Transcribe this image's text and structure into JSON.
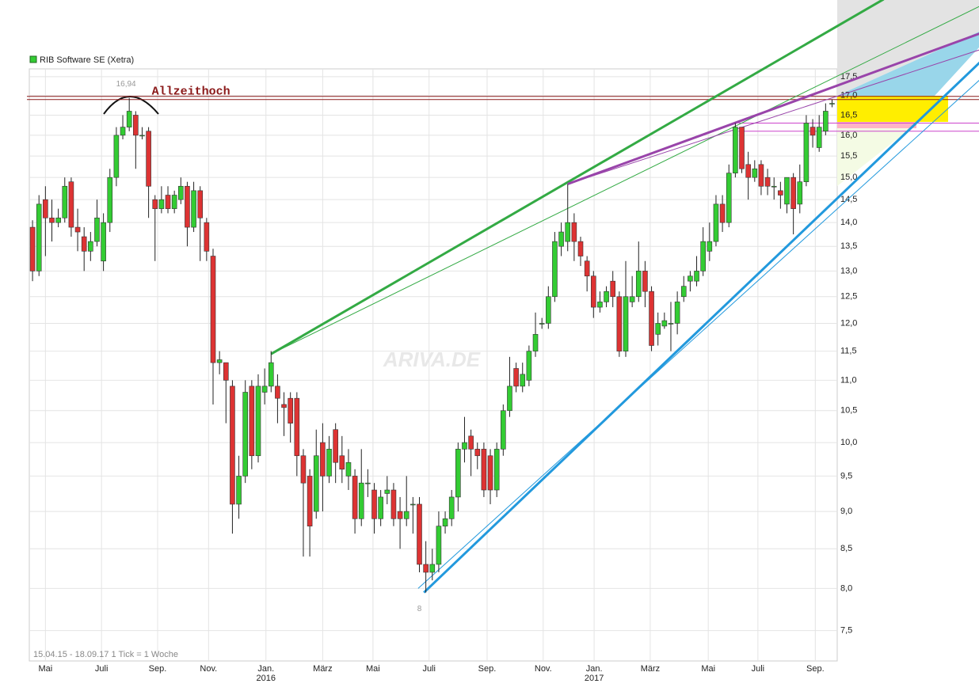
{
  "chart_data": {
    "type": "candlestick",
    "legend": "RIB Software SE (Xetra)",
    "footer": "15.04.15 - 18.09.17   1 Tick = 1 Woche",
    "watermark": "ARIVA.DE",
    "log_scale": true,
    "grid": true,
    "up_color": "#33cc33",
    "down_color": "#dd3333",
    "ylim": [
      7.16,
      17.71
    ],
    "yticks": [
      {
        "value": 7.5,
        "label": "7,5"
      },
      {
        "value": 8,
        "label": "8,0"
      },
      {
        "value": 8.5,
        "label": "8,5"
      },
      {
        "value": 9,
        "label": "9,0"
      },
      {
        "value": 9.5,
        "label": "9,5"
      },
      {
        "value": 10,
        "label": "10,0"
      },
      {
        "value": 10.5,
        "label": "10,5"
      },
      {
        "value": 11,
        "label": "11,0"
      },
      {
        "value": 11.5,
        "label": "11,5"
      },
      {
        "value": 12,
        "label": "12,0"
      },
      {
        "value": 12.5,
        "label": "12,5"
      },
      {
        "value": 13,
        "label": "13,0"
      },
      {
        "value": 13.5,
        "label": "13,5"
      },
      {
        "value": 14,
        "label": "14,0"
      },
      {
        "value": 14.5,
        "label": "14,5"
      },
      {
        "value": 15,
        "label": "15,0"
      },
      {
        "value": 15.5,
        "label": "15,5"
      },
      {
        "value": 16,
        "label": "16,0"
      },
      {
        "value": 16.5,
        "label": "16,5"
      },
      {
        "value": 17,
        "label": "17,0"
      },
      {
        "value": 17.5,
        "label": "17,5"
      }
    ],
    "xlim": [
      -0.5,
      124.8
    ],
    "xticks": [
      {
        "value": 2.0,
        "label": "Mai"
      },
      {
        "value": 10.7,
        "label": "Juli"
      },
      {
        "value": 19.4,
        "label": "Sep."
      },
      {
        "value": 27.3,
        "label": "Nov."
      },
      {
        "value": 36.2,
        "label": "Jan."
      },
      {
        "value": 45,
        "label": "März"
      },
      {
        "value": 52.8,
        "label": "Mai"
      },
      {
        "value": 61.5,
        "label": "Juli"
      },
      {
        "value": 70.5,
        "label": "Sep."
      },
      {
        "value": 79.2,
        "label": "Nov."
      },
      {
        "value": 87.1,
        "label": "Jan."
      },
      {
        "value": 95.8,
        "label": "März"
      },
      {
        "value": 104.8,
        "label": "Mai"
      },
      {
        "value": 112.5,
        "label": "Juli"
      },
      {
        "value": 121.4,
        "label": "Sep."
      }
    ],
    "years": [
      {
        "value": 36.2,
        "label": "2016"
      },
      {
        "value": 87.1,
        "label": "2017"
      }
    ],
    "open": [
      13.9,
      13.0,
      14.5,
      14.1,
      14.0,
      14.1,
      14.9,
      13.9,
      13.7,
      13.4,
      13.6,
      13.2,
      14.0,
      15.0,
      16.0,
      16.2,
      16.5,
      16.0,
      16.1,
      14.5,
      14.3,
      14.6,
      14.3,
      14.5,
      14.8,
      13.9,
      14.7,
      14.0,
      13.3,
      11.3,
      11.3,
      10.9,
      9.1,
      9.5,
      10.9,
      9.8,
      10.8,
      10.9,
      10.9,
      10.6,
      10.7,
      10.7,
      9.8,
      9.5,
      9.0,
      10.0,
      9.5,
      10.2,
      9.8,
      9.5,
      9.5,
      8.9,
      9.4,
      9.3,
      8.9,
      9.25,
      9.3,
      9.0,
      8.9,
      9.1,
      9.1,
      8.3,
      8.2,
      8.3,
      8.8,
      8.9,
      9.2,
      9.9,
      10.1,
      9.9,
      9.9,
      9.8,
      9.3,
      9.9,
      10.5,
      11.2,
      10.9,
      11.0,
      11.5,
      12.0,
      12.0,
      12.5,
      13.5,
      13.6,
      14.0,
      13.6,
      13.2,
      12.9,
      12.3,
      12.4,
      12.8,
      12.5,
      11.5,
      12.4,
      12.5,
      13.0,
      12.6,
      11.8,
      11.95,
      12.0,
      12.0,
      12.5,
      12.8,
      12.8,
      13.0,
      13.4,
      13.6,
      14.4,
      14.0,
      15.1,
      16.2,
      15.3,
      15.0,
      15.3,
      15.0,
      14.8,
      14.7,
      14.4,
      15.0,
      14.4,
      14.9,
      16.2,
      15.7,
      16.1,
      16.8
    ],
    "high": [
      14.05,
      14.6,
      14.8,
      14.5,
      14.3,
      15.0,
      15.0,
      14.3,
      13.9,
      13.8,
      14.5,
      14.2,
      15.2,
      16.2,
      16.5,
      16.94,
      16.6,
      16.2,
      16.2,
      14.6,
      14.8,
      14.8,
      14.7,
      15.0,
      14.9,
      14.9,
      14.8,
      14.1,
      13.45,
      11.5,
      11.3,
      11.0,
      9.8,
      11.0,
      11.0,
      11.1,
      11.2,
      11.5,
      11.1,
      10.8,
      10.8,
      10.8,
      9.9,
      9.6,
      10.2,
      10.3,
      10.1,
      10.3,
      10.1,
      9.9,
      9.6,
      9.9,
      9.6,
      9.4,
      9.3,
      9.5,
      9.4,
      9.2,
      9.5,
      9.2,
      9.2,
      8.6,
      8.5,
      9.0,
      9.0,
      9.3,
      10.0,
      10.4,
      10.2,
      10.0,
      10.0,
      9.9,
      10.0,
      10.6,
      11.4,
      11.3,
      11.3,
      11.6,
      12.2,
      12.1,
      12.7,
      13.8,
      14.0,
      14.85,
      14.2,
      13.7,
      13.3,
      13.0,
      12.6,
      12.7,
      13.0,
      12.6,
      13.2,
      12.9,
      13.6,
      13.2,
      12.7,
      12.2,
      12.2,
      12.4,
      12.6,
      12.9,
      13.0,
      13.3,
      13.9,
      14.0,
      14.6,
      14.6,
      15.3,
      16.3,
      16.2,
      15.6,
      15.4,
      15.4,
      15.2,
      15.0,
      14.9,
      15.0,
      15.1,
      15.3,
      16.5,
      16.4,
      16.5,
      16.8,
      16.9
    ],
    "low": [
      12.8,
      12.9,
      13.3,
      13.6,
      13.9,
      14.0,
      13.7,
      13.4,
      13.0,
      13.2,
      13.5,
      13.0,
      13.8,
      14.8,
      15.9,
      16.1,
      15.2,
      15.9,
      14.1,
      13.2,
      14.2,
      14.2,
      14.2,
      14.4,
      13.5,
      13.8,
      13.2,
      13.2,
      10.6,
      11.1,
      10.3,
      8.7,
      8.9,
      9.4,
      9.6,
      9.7,
      10.6,
      10.8,
      10.3,
      10.1,
      10.0,
      9.5,
      8.4,
      8.4,
      8.9,
      9.0,
      9.4,
      9.4,
      9.4,
      9.3,
      8.7,
      8.8,
      9.2,
      8.7,
      8.8,
      9.1,
      8.8,
      8.5,
      8.8,
      8.7,
      8.2,
      7.95,
      8.1,
      8.2,
      8.7,
      8.8,
      9.0,
      9.7,
      9.5,
      9.6,
      9.2,
      9.1,
      9.2,
      9.8,
      10.4,
      10.8,
      10.8,
      10.9,
      11.4,
      11.9,
      11.9,
      12.4,
      13.3,
      13.4,
      13.2,
      13.1,
      12.6,
      12.1,
      12.2,
      12.3,
      12.3,
      11.4,
      11.4,
      12.3,
      12.4,
      12.3,
      11.5,
      11.6,
      11.9,
      11.5,
      11.8,
      12.4,
      12.6,
      12.7,
      12.9,
      13.2,
      13.5,
      13.8,
      13.9,
      15.0,
      15.1,
      14.5,
      14.9,
      14.6,
      14.6,
      14.5,
      14.3,
      14.2,
      13.75,
      14.2,
      14.8,
      15.7,
      15.6,
      16.0,
      16.7
    ],
    "close": [
      13.0,
      14.4,
      14.1,
      14.0,
      14.1,
      14.8,
      13.9,
      13.8,
      13.4,
      13.6,
      14.1,
      14.0,
      15.0,
      16.0,
      16.2,
      16.6,
      16.0,
      16.0,
      14.8,
      14.3,
      14.5,
      14.3,
      14.6,
      14.8,
      13.9,
      14.7,
      14.1,
      13.4,
      11.3,
      11.35,
      11.0,
      9.1,
      9.5,
      10.8,
      9.8,
      10.9,
      10.9,
      11.3,
      10.7,
      10.55,
      10.3,
      9.8,
      9.4,
      8.8,
      9.8,
      9.5,
      9.9,
      9.7,
      9.6,
      9.7,
      8.9,
      9.4,
      9.4,
      8.9,
      9.2,
      9.3,
      8.9,
      8.9,
      9.0,
      9.1,
      8.3,
      8.2,
      8.3,
      8.8,
      8.9,
      9.2,
      9.9,
      10.0,
      9.9,
      9.8,
      9.3,
      9.3,
      9.9,
      10.5,
      10.9,
      10.9,
      11.1,
      11.5,
      11.8,
      12.0,
      12.5,
      13.6,
      13.8,
      14.0,
      13.6,
      13.3,
      12.9,
      12.3,
      12.4,
      12.6,
      12.5,
      11.5,
      12.5,
      12.5,
      13.0,
      12.6,
      11.6,
      12.0,
      12.05,
      12.0,
      12.4,
      12.7,
      12.9,
      13.0,
      13.6,
      13.6,
      14.4,
      14.0,
      15.1,
      16.2,
      15.2,
      15.0,
      15.2,
      14.8,
      14.8,
      14.8,
      14.6,
      15.0,
      14.3,
      14.9,
      16.3,
      16.0,
      16.2,
      16.6,
      16.8
    ],
    "hlines": [
      {
        "value": 16.94,
        "color": "#8b1a1a"
      },
      {
        "value": 16.3,
        "color": "#cc44cc"
      },
      {
        "value": 16.1,
        "color": "#cc44cc"
      }
    ],
    "annotations": [
      {
        "text": "Allzeithoch",
        "x": 18.5,
        "y": 16.94,
        "color": "#8b1a1a"
      },
      {
        "text": "16,94",
        "x": 14.5,
        "y": 17.3,
        "color": "#999999"
      },
      {
        "text": "8",
        "x": 60,
        "y": 7.75,
        "color": "#999999"
      }
    ],
    "trendlines": [
      {
        "color": "#33aa44",
        "width": 3,
        "from": [
          37,
          11.45
        ],
        "to": [
          132,
          19.7
        ]
      },
      {
        "color": "#33aa44",
        "width": 1,
        "from": [
          37,
          11.45
        ],
        "to": [
          147,
          19.5
        ]
      },
      {
        "color": "#9944aa",
        "width": 3,
        "from": [
          83,
          14.85
        ],
        "to": [
          147,
          18.7
        ]
      },
      {
        "color": "#9944aa",
        "width": 1,
        "from": [
          83,
          14.85
        ],
        "to": [
          147,
          18.24
        ]
      },
      {
        "color": "#2299dd",
        "width": 3,
        "from": [
          60.7,
          7.95
        ],
        "to": [
          147,
          17.9
        ]
      },
      {
        "color": "#2299dd",
        "width": 1,
        "from": [
          59.8,
          8.0
        ],
        "to": [
          147,
          17.43
        ]
      }
    ]
  }
}
